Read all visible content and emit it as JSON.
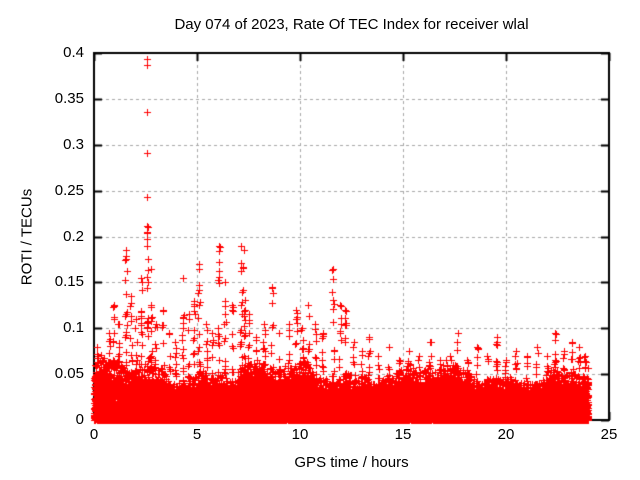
{
  "figure": {
    "background": "#ffffff",
    "kind": "gnuplot-style scatter plot"
  },
  "chart_data": {
    "type": "scatter",
    "title": "Day 074 of 2023, Rate Of TEC Index for receiver wlal",
    "xlabel": "GPS time / hours",
    "ylabel": "ROTI / TECUs",
    "xlim": [
      0,
      25
    ],
    "ylim": [
      0,
      0.4
    ],
    "xticks": [
      0,
      5,
      10,
      15,
      20,
      25
    ],
    "yticks": [
      0,
      0.05,
      0.1,
      0.15,
      0.2,
      0.25,
      0.3,
      0.35,
      0.4
    ],
    "xtick_labels": [
      "0",
      "5",
      "10",
      "15",
      "20",
      "25"
    ],
    "ytick_labels": [
      "0",
      "0.05",
      "0.1",
      "0.15",
      "0.2",
      "0.25",
      "0.3",
      "0.35",
      "0.4"
    ],
    "grid": {
      "show": true,
      "style": "dashed",
      "color": "#a8a8a8"
    },
    "axes_color": "#000000",
    "text_color": "#000000",
    "legend": "none",
    "series": [
      {
        "name": "ROTI",
        "marker": "plus",
        "color": "#ff0000",
        "data_time_range_hours": [
          0,
          24
        ],
        "baseline": {
          "floor": 0.0,
          "dense_top": 0.045,
          "fur_top": 0.07
        },
        "spikes": [
          [
            0.15,
            0.08
          ],
          [
            0.45,
            0.065
          ],
          [
            0.75,
            0.095
          ],
          [
            0.95,
            0.125
          ],
          [
            1.2,
            0.105
          ],
          [
            1.55,
            0.185
          ],
          [
            1.8,
            0.135
          ],
          [
            2.05,
            0.11
          ],
          [
            2.3,
            0.155
          ],
          [
            2.6,
            0.21
          ],
          [
            2.78,
            0.165
          ],
          [
            3.0,
            0.105
          ],
          [
            3.35,
            0.12
          ],
          [
            3.65,
            0.095
          ],
          [
            3.95,
            0.085
          ],
          [
            4.3,
            0.155
          ],
          [
            4.6,
            0.115
          ],
          [
            4.85,
            0.13
          ],
          [
            5.1,
            0.17
          ],
          [
            5.45,
            0.105
          ],
          [
            5.75,
            0.095
          ],
          [
            6.05,
            0.19
          ],
          [
            6.35,
            0.15
          ],
          [
            6.7,
            0.125
          ],
          [
            7.15,
            0.19
          ],
          [
            7.3,
            0.185
          ],
          [
            7.5,
            0.115
          ],
          [
            7.85,
            0.09
          ],
          [
            8.25,
            0.105
          ],
          [
            8.65,
            0.145
          ],
          [
            9.0,
            0.095
          ],
          [
            9.45,
            0.105
          ],
          [
            9.8,
            0.12
          ],
          [
            10.1,
            0.1
          ],
          [
            10.4,
            0.125
          ],
          [
            10.75,
            0.105
          ],
          [
            11.1,
            0.095
          ],
          [
            11.6,
            0.165
          ],
          [
            11.95,
            0.125
          ],
          [
            12.2,
            0.12
          ],
          [
            12.6,
            0.085
          ],
          [
            13.0,
            0.075
          ],
          [
            13.35,
            0.09
          ],
          [
            13.8,
            0.07
          ],
          [
            14.3,
            0.08
          ],
          [
            14.8,
            0.065
          ],
          [
            15.3,
            0.075
          ],
          [
            15.8,
            0.07
          ],
          [
            16.3,
            0.085
          ],
          [
            16.8,
            0.065
          ],
          [
            17.3,
            0.07
          ],
          [
            17.65,
            0.095
          ],
          [
            18.1,
            0.065
          ],
          [
            18.6,
            0.08
          ],
          [
            19.1,
            0.07
          ],
          [
            19.55,
            0.09
          ],
          [
            20.0,
            0.065
          ],
          [
            20.5,
            0.075
          ],
          [
            21.0,
            0.07
          ],
          [
            21.5,
            0.08
          ],
          [
            22.0,
            0.07
          ],
          [
            22.4,
            0.095
          ],
          [
            22.8,
            0.075
          ],
          [
            23.2,
            0.085
          ],
          [
            23.55,
            0.08
          ],
          [
            23.85,
            0.07
          ]
        ],
        "outliers": [
          [
            2.56,
            0.394
          ],
          [
            2.57,
            0.387
          ],
          [
            2.57,
            0.336
          ],
          [
            2.58,
            0.291
          ],
          [
            2.58,
            0.243
          ],
          [
            2.56,
            0.211
          ],
          [
            2.57,
            0.205
          ],
          [
            2.58,
            0.197
          ],
          [
            2.55,
            0.19
          ],
          [
            2.6,
            0.175
          ],
          [
            2.62,
            0.163
          ],
          [
            1.55,
            0.185
          ],
          [
            1.56,
            0.176
          ],
          [
            6.05,
            0.19
          ],
          [
            7.15,
            0.19
          ]
        ]
      }
    ]
  }
}
